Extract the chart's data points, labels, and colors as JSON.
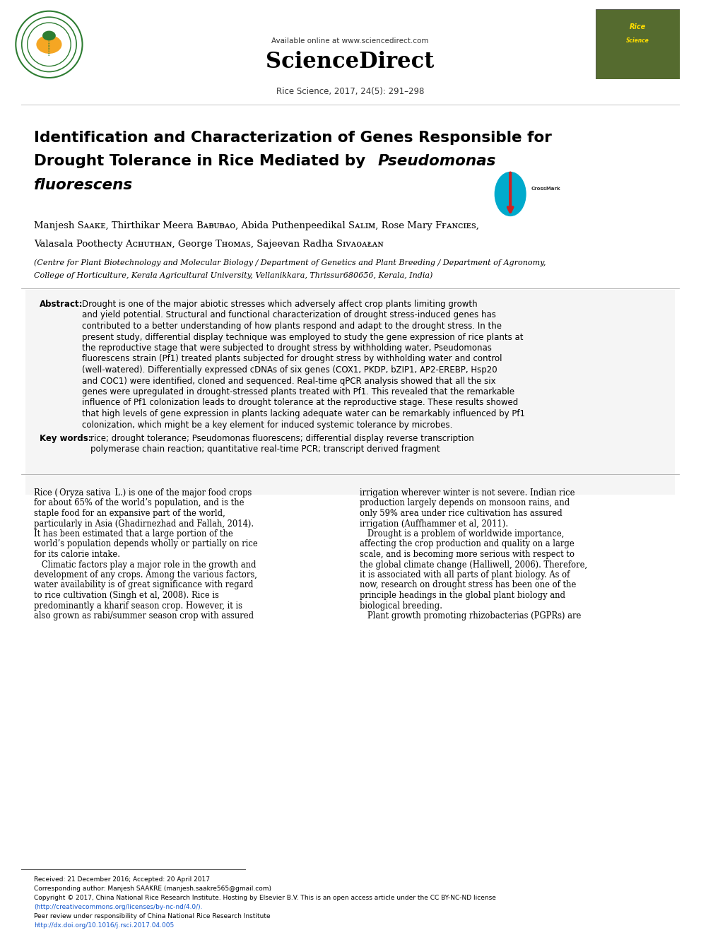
{
  "bg_color": "#ffffff",
  "page_width": 9.92,
  "page_height": 13.23,
  "header": {
    "available_online": "Available online at www.sciencedirect.com",
    "journal_name": "ScienceDirect",
    "citation": "Rice Science, 2017, 24(5): 291–298"
  },
  "title_lines": [
    "Identification and Characterization of Genes Responsible for",
    "Drought Tolerance in Rice Mediated by ",
    "fluorescens"
  ],
  "title_italic_part": "Pseudomonas",
  "authors": "Manjesh Sᴀᴀᴋᴇ, Thirthikar Meera Bᴀᴃᴜᴃᴀᴏ, Abida Puthenpeedikal Sᴀʟɪᴍ, Rose Mary Fғᴀɴᴄɪᴇѕ,",
  "authors2": "Valasala Poothecty Aᴄʜᴜᴛʜᴀɴ, George Tʜᴏᴍᴀѕ, Sajeevan Radha Sɪᴠᴀᴏᴀᴌᴀɴ",
  "affiliation": "(Centre for Plant Biotechnology and Molecular Biology / Department of Genetics and Plant Breeding / Department of Agronomy,",
  "affiliation2": "College of Horticulture, Kerala Agricultural University, Vellanikkara, Thrissur680656, Kerala, India)",
  "abstract_title": "Abstract:",
  "abstract_text": "Drought is one of the major abiotic stresses which adversely affect crop plants limiting growth and yield potential. Structural and functional characterization of drought stress-induced genes has contributed to a better understanding of how plants respond and adapt to the drought stress. In the present study, differential display technique was employed to study the gene expression of rice plants at the reproductive stage that were subjected to drought stress by withholding water, Pseudomonas fluorescens strain (Pf1) treated plants subjected for drought stress by withholding water and control (well-watered). Differentially expressed cDNAs of six genes (COX1, PKDP, bZIP1, AP2-EREBP, Hsp20 and COC1) were identified, cloned and sequenced. Real-time qPCR analysis showed that all the six genes were upregulated in drought-stressed plants treated with Pf1. This revealed that the remarkable influence of Pf1 colonization leads to drought tolerance at the reproductive stage. These results showed that high levels of gene expression in plants lacking adequate water can be remarkably influenced by Pf1 colonization, which might be a key element for induced systemic tolerance by microbes.",
  "keywords_title": "Key words:",
  "keywords_text": "rice; drought tolerance; Pseudomonas fluorescens; differential display reverse transcription polymerase chain reaction; quantitative real-time PCR; transcript derived fragment",
  "body_col1": "Rice (Oryza sativa L.) is one of the major food crops for about 65% of the world’s population, and is the staple food for an expansive part of the world, particularly in Asia (Ghadirnezhad and Fallah, 2014). It has been estimated that a large portion of the world’s population depends wholly or partially on rice for its calorie intake.\n    Climatic factors play a major role in the growth and development of any crops. Among the various factors, water availability is of great significance with regard to rice cultivation (Singh et al, 2008). Rice is predominantly a kharif season crop. However, it is also grown as rabi/summer season crop with assured",
  "body_col2": "irrigation wherever winter is not severe. Indian rice production largely depends on monsoon rains, and only 59% area under rice cultivation has assured irrigation (Auffhammer et al, 2011).\n    Drought is a problem of worldwide importance, affecting the crop production and quality on a large scale, and is becoming more serious with respect to the global climate change (Halliwell, 2006). Therefore, it is associated with all parts of plant biology. As of now, research on drought stress has been one of the principle headings in the global plant biology and biological breeding.\n    Plant growth promoting rhizobacterias (PGPRs) are",
  "footer_line1": "Received: 21 December 2016; Accepted: 20 April 2017",
  "footer_line2": "Corresponding author: Manjesh SAAKRE (manjesh.saakre565@gmail.com)",
  "footer_line3": "Copyright © 2017, China National Rice Research Institute. Hosting by Elsevier B.V. This is an open access article under the CC BY-NC-ND license",
  "footer_line4": "(http://creativecommons.org/licenses/by-nc-nd/4.0/).",
  "footer_line5": "Peer review under responsibility of China National Rice Research Institute",
  "footer_line6": "http://dx.doi.org/10.1016/j.rsci.2017.04.005"
}
